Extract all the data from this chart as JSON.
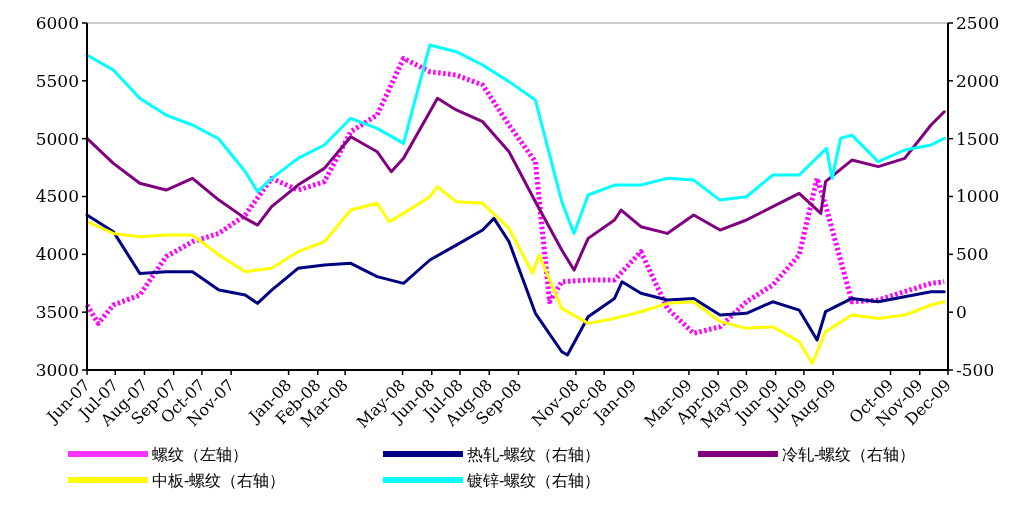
{
  "chart_data": {
    "type": "line",
    "xlim": [
      "2007-06-01",
      "2009-12-01"
    ],
    "xticks": [
      {
        "value": "2007-06-01",
        "label": "Jun-07"
      },
      {
        "value": "2007-07-01",
        "label": "Jul-07"
      },
      {
        "value": "2007-08-01",
        "label": "Aug-07"
      },
      {
        "value": "2007-09-01",
        "label": "Sep-07"
      },
      {
        "value": "2007-10-01",
        "label": "Oct-07"
      },
      {
        "value": "2007-11-01",
        "label": "Nov-07"
      },
      {
        "value": "2008-01-01",
        "label": "Jan-08"
      },
      {
        "value": "2008-02-01",
        "label": "Feb-08"
      },
      {
        "value": "2008-03-01",
        "label": "Mar-08"
      },
      {
        "value": "2008-05-01",
        "label": "May-08"
      },
      {
        "value": "2008-06-01",
        "label": "Jun-08"
      },
      {
        "value": "2008-07-01",
        "label": "Jul-08"
      },
      {
        "value": "2008-08-01",
        "label": "Aug-08"
      },
      {
        "value": "2008-09-01",
        "label": "Sep-08"
      },
      {
        "value": "2008-11-01",
        "label": "Nov-08"
      },
      {
        "value": "2008-12-01",
        "label": "Dec-08"
      },
      {
        "value": "2009-01-01",
        "label": "Jan-09"
      },
      {
        "value": "2009-03-01",
        "label": "Mar-09"
      },
      {
        "value": "2009-04-01",
        "label": "Apr-09"
      },
      {
        "value": "2009-05-01",
        "label": "May-09"
      },
      {
        "value": "2009-06-01",
        "label": "Jun-09"
      },
      {
        "value": "2009-07-01",
        "label": "Jul-09"
      },
      {
        "value": "2009-08-01",
        "label": "Aug-09"
      },
      {
        "value": "2009-10-01",
        "label": "Oct-09"
      },
      {
        "value": "2009-11-01",
        "label": "Nov-09"
      },
      {
        "value": "2009-12-01",
        "label": "Dec-09"
      }
    ],
    "ylim": [
      3000,
      6000
    ],
    "yticks": [
      3000,
      3500,
      4000,
      4500,
      5000,
      5500,
      6000
    ],
    "y2lim": [
      -500,
      2500
    ],
    "y2ticks": [
      -500,
      0,
      500,
      1000,
      1500,
      2000,
      2500
    ],
    "grid": false,
    "legend": "bottom",
    "marker": "none",
    "series": [
      {
        "name": "螺纹（左轴）",
        "color": "#ff00ff",
        "line_style": "dotted",
        "x": [
          "2007-06-01",
          "2007-06-13",
          "2007-06-29",
          "2007-07-27",
          "2007-08-24",
          "2007-09-21",
          "2007-10-19",
          "2007-11-16",
          "2007-12-14",
          "2008-01-11",
          "2008-02-08",
          "2008-03-07",
          "2008-04-04",
          "2008-05-02",
          "2008-05-30",
          "2008-06-27",
          "2008-07-25",
          "2008-08-22",
          "2008-09-19",
          "2008-10-04",
          "2008-10-17",
          "2008-11-14",
          "2008-12-12",
          "2009-01-09",
          "2009-02-06",
          "2009-03-06",
          "2009-04-03",
          "2009-05-01",
          "2009-05-29",
          "2009-06-26",
          "2009-07-15",
          "2009-07-24",
          "2009-08-21",
          "2009-09-18",
          "2009-10-16",
          "2009-11-13",
          "2009-11-27"
        ],
        "values": [
          3562,
          3403,
          3562,
          3648,
          3980,
          4109,
          4181,
          4340,
          4657,
          4556,
          4628,
          5060,
          5204,
          5694,
          5579,
          5550,
          5464,
          5118,
          4801,
          3590,
          3763,
          3778,
          3778,
          4023,
          3533,
          3317,
          3374,
          3590,
          3735,
          3994,
          4657,
          4426,
          3590,
          3605,
          3677,
          3749,
          3763
        ]
      },
      {
        "name": "热轧-螺纹（右轴）",
        "color": "#000080",
        "axis": "y2",
        "x": [
          "2007-06-01",
          "2007-06-29",
          "2007-07-27",
          "2007-08-24",
          "2007-09-21",
          "2007-10-19",
          "2007-11-16",
          "2007-11-29",
          "2007-12-14",
          "2008-01-11",
          "2008-02-08",
          "2008-03-07",
          "2008-04-04",
          "2008-05-02",
          "2008-05-30",
          "2008-06-27",
          "2008-07-25",
          "2008-08-06",
          "2008-08-22",
          "2008-09-19",
          "2008-10-17",
          "2008-10-23",
          "2008-11-14",
          "2008-12-12",
          "2008-12-20",
          "2009-01-09",
          "2009-02-06",
          "2009-03-06",
          "2009-04-03",
          "2009-05-01",
          "2009-05-29",
          "2009-06-26",
          "2009-07-15",
          "2009-07-24",
          "2009-08-21",
          "2009-09-18",
          "2009-10-16",
          "2009-11-13",
          "2009-11-27"
        ],
        "values": [
          840,
          696,
          335,
          350,
          350,
          191,
          148,
          76,
          191,
          379,
          407,
          422,
          307,
          249,
          451,
          580,
          710,
          811,
          609,
          -10,
          -342,
          -371,
          -39,
          119,
          263,
          163,
          105,
          119,
          -25,
          -10,
          90,
          18,
          -241,
          4,
          119,
          90,
          134,
          177,
          177
        ]
      },
      {
        "name": "冷轧-螺纹（右轴）",
        "color": "#800080",
        "axis": "y2",
        "x": [
          "2007-06-01",
          "2007-06-29",
          "2007-07-27",
          "2007-08-24",
          "2007-09-21",
          "2007-10-19",
          "2007-11-16",
          "2007-11-29",
          "2007-12-14",
          "2008-01-11",
          "2008-02-08",
          "2008-03-07",
          "2008-04-04",
          "2008-04-19",
          "2008-05-02",
          "2008-05-30",
          "2008-06-07",
          "2008-06-27",
          "2008-07-25",
          "2008-08-22",
          "2008-09-19",
          "2008-10-17",
          "2008-10-30",
          "2008-11-14",
          "2008-12-12",
          "2008-12-19",
          "2009-01-09",
          "2009-02-06",
          "2009-03-06",
          "2009-04-03",
          "2009-05-01",
          "2009-05-29",
          "2009-06-26",
          "2009-07-19",
          "2009-07-24",
          "2009-08-21",
          "2009-09-18",
          "2009-10-16",
          "2009-11-13",
          "2009-11-27"
        ],
        "values": [
          1503,
          1286,
          1114,
          1056,
          1157,
          969,
          811,
          753,
          912,
          1099,
          1243,
          1517,
          1387,
          1214,
          1330,
          1733,
          1849,
          1748,
          1647,
          1387,
          955,
          537,
          364,
          638,
          797,
          883,
          739,
          681,
          840,
          710,
          797,
          912,
          1027,
          854,
          1128,
          1315,
          1258,
          1330,
          1618,
          1733
        ]
      },
      {
        "name": "中板-螺纹（右轴）",
        "color": "#ffff00",
        "axis": "y2",
        "x": [
          "2007-06-01",
          "2007-06-29",
          "2007-07-27",
          "2007-08-24",
          "2007-09-21",
          "2007-10-19",
          "2007-11-16",
          "2007-12-14",
          "2008-01-11",
          "2008-02-08",
          "2008-03-07",
          "2008-04-04",
          "2008-04-17",
          "2008-05-02",
          "2008-05-30",
          "2008-06-07",
          "2008-06-27",
          "2008-07-25",
          "2008-08-22",
          "2008-09-16",
          "2008-09-19",
          "2008-09-23",
          "2008-10-17",
          "2008-11-14",
          "2008-12-12",
          "2009-01-09",
          "2009-02-06",
          "2009-03-06",
          "2009-04-03",
          "2009-05-01",
          "2009-05-29",
          "2009-06-26",
          "2009-07-10",
          "2009-07-24",
          "2009-08-21",
          "2009-09-18",
          "2009-10-16",
          "2009-11-13",
          "2009-11-27"
        ],
        "values": [
          782,
          681,
          652,
          667,
          667,
          494,
          350,
          379,
          523,
          609,
          883,
          941,
          782,
          854,
          998,
          1085,
          955,
          941,
          725,
          336,
          407,
          494,
          33,
          -97,
          -54,
          4,
          76,
          90,
          -82,
          -140,
          -126,
          -255,
          -443,
          -169,
          -25,
          -54,
          -25,
          62,
          90
        ]
      },
      {
        "name": "镀锌-螺纹（右轴）",
        "color": "#00ffff",
        "axis": "y2",
        "x": [
          "2007-06-01",
          "2007-06-29",
          "2007-07-27",
          "2007-08-24",
          "2007-09-21",
          "2007-10-19",
          "2007-11-16",
          "2007-11-29",
          "2007-12-14",
          "2008-01-11",
          "2008-02-08",
          "2008-03-07",
          "2008-04-04",
          "2008-05-02",
          "2008-05-30",
          "2008-06-27",
          "2008-07-25",
          "2008-08-22",
          "2008-09-19",
          "2008-10-17",
          "2008-10-30",
          "2008-11-14",
          "2008-12-12",
          "2009-01-09",
          "2009-02-06",
          "2009-03-06",
          "2009-04-03",
          "2009-05-01",
          "2009-05-29",
          "2009-06-26",
          "2009-07-25",
          "2009-07-31",
          "2009-08-09",
          "2009-08-21",
          "2009-09-18",
          "2009-10-16",
          "2009-11-13",
          "2009-11-27"
        ],
        "values": [
          2223,
          2093,
          1849,
          1704,
          1618,
          1497,
          1214,
          1042,
          1157,
          1330,
          1445,
          1676,
          1589,
          1459,
          2310,
          2252,
          2137,
          1993,
          1834,
          955,
          681,
          1013,
          1099,
          1099,
          1157,
          1142,
          969,
          998,
          1186,
          1186,
          1416,
          1157,
          1503,
          1531,
          1301,
          1402,
          1445,
          1503
        ]
      }
    ]
  }
}
